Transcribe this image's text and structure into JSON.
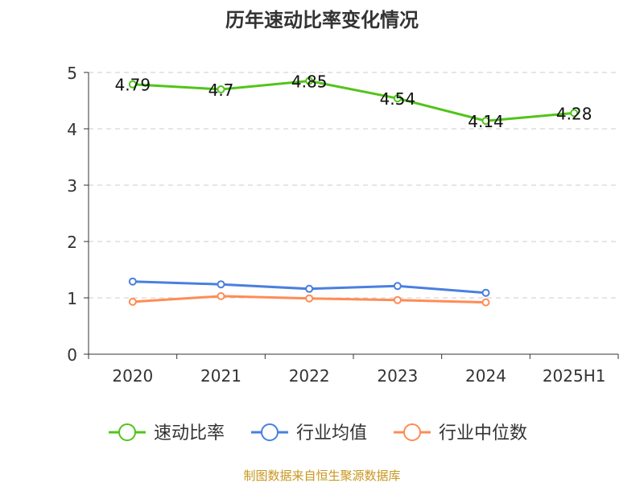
{
  "chart_data": {
    "type": "line",
    "title": "历年速动比率变化情况",
    "categories": [
      "2020",
      "2021",
      "2022",
      "2023",
      "2024",
      "2025H1"
    ],
    "ylim": [
      0,
      5
    ],
    "yticks": [
      0,
      1,
      2,
      3,
      4,
      5
    ],
    "grid": true,
    "legend_placement": "bottom",
    "series": [
      {
        "name": "速动比率",
        "color": "#52c41a",
        "values": [
          4.79,
          4.7,
          4.85,
          4.54,
          4.14,
          4.28
        ],
        "labels": [
          "4.79",
          "4.7",
          "4.85",
          "4.54",
          "4.14",
          "4.28"
        ]
      },
      {
        "name": "行业均值",
        "color": "#4a7fe0",
        "values": [
          1.29,
          1.24,
          1.16,
          1.21,
          1.09,
          null
        ]
      },
      {
        "name": "行业中位数",
        "color": "#ff8c55",
        "values": [
          0.93,
          1.03,
          0.99,
          0.96,
          0.92,
          null
        ]
      }
    ]
  },
  "footer": "制图数据来自恒生聚源数据库",
  "colors": {
    "footer": "#c8961e"
  }
}
